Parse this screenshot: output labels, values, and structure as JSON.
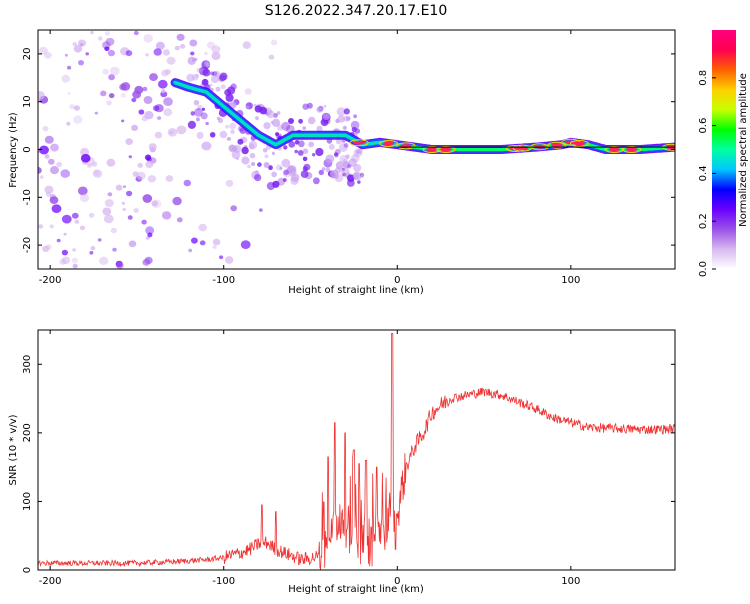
{
  "figure": {
    "title": "S126.2022.347.20.17.E10"
  },
  "chart_data": [
    {
      "type": "heatmap",
      "xlabel": "Height of straight line (km)",
      "ylabel": "Frequency (Hz)",
      "xlim": [
        -207,
        160
      ],
      "ylim": [
        -25,
        25
      ],
      "xticks": [
        -200,
        -100,
        0,
        100
      ],
      "yticks": [
        -20,
        -10,
        0,
        10,
        20
      ],
      "ridge_x": [
        -128,
        -120,
        -110,
        -100,
        -90,
        -80,
        -70,
        -60,
        -50,
        -40,
        -30,
        -20,
        -10,
        0,
        10,
        20,
        40,
        60,
        80,
        95,
        100,
        110,
        120,
        140,
        160
      ],
      "ridge_y": [
        14,
        13,
        12,
        9,
        6,
        3,
        1,
        3,
        3,
        3,
        3,
        1,
        1.5,
        1,
        0.5,
        0,
        0,
        0,
        0.5,
        1,
        1.5,
        1,
        0,
        0,
        0.5
      ],
      "reference_line_y": 0.5,
      "colorbar": {
        "label": "Normalized spectral amplitude",
        "range": [
          0,
          1
        ],
        "ticks": [
          "0.0",
          "0.2",
          "0.4",
          "0.6",
          "0.8"
        ],
        "tick_values": [
          0,
          0.2,
          0.4,
          0.6,
          0.8
        ],
        "colors": [
          "#ffffff",
          "#d8b8f0",
          "#9a50e8",
          "#6a00ff",
          "#0000ff",
          "#00c8ff",
          "#00ffa0",
          "#00ff00",
          "#c8ff00",
          "#ffd000",
          "#ff6000",
          "#ff0050",
          "#ff0080"
        ]
      }
    },
    {
      "type": "line",
      "xlabel": "Height of straight line (km)",
      "ylabel": "SNR (10 * v/v)",
      "xlim": [
        -207,
        160
      ],
      "ylim": [
        0,
        350
      ],
      "xticks": [
        -200,
        -100,
        0,
        100
      ],
      "yticks": [
        0,
        100,
        200,
        300
      ],
      "color": "#ee3333",
      "envelope_x": [
        -207,
        -150,
        -130,
        -110,
        -100,
        -95,
        -90,
        -85,
        -80,
        -75,
        -70,
        -65,
        -60,
        -55,
        -45,
        -42,
        -40,
        -35,
        -30,
        -25,
        -20,
        -15,
        -10,
        -5,
        -2,
        0,
        2,
        5,
        10,
        15,
        20,
        30,
        40,
        50,
        60,
        70,
        80,
        90,
        100,
        110,
        120,
        130,
        140,
        150,
        160
      ],
      "envelope_y": [
        10,
        10,
        12,
        15,
        18,
        22,
        25,
        30,
        38,
        40,
        30,
        25,
        20,
        15,
        20,
        40,
        60,
        70,
        60,
        60,
        55,
        50,
        60,
        80,
        100,
        80,
        110,
        150,
        180,
        200,
        230,
        250,
        255,
        260,
        255,
        245,
        235,
        222,
        215,
        208,
        207,
        206,
        205,
        205,
        206
      ],
      "spikes": [
        {
          "x": -78,
          "y": 95
        },
        {
          "x": -70,
          "y": 85
        },
        {
          "x": -40,
          "y": 165
        },
        {
          "x": -36,
          "y": 215
        },
        {
          "x": -30,
          "y": 200
        },
        {
          "x": -25,
          "y": 175
        },
        {
          "x": -22,
          "y": 155
        },
        {
          "x": -18,
          "y": 160
        },
        {
          "x": -12,
          "y": 150
        },
        {
          "x": -3,
          "y": 345
        },
        {
          "x": -1,
          "y": 30
        }
      ]
    }
  ]
}
